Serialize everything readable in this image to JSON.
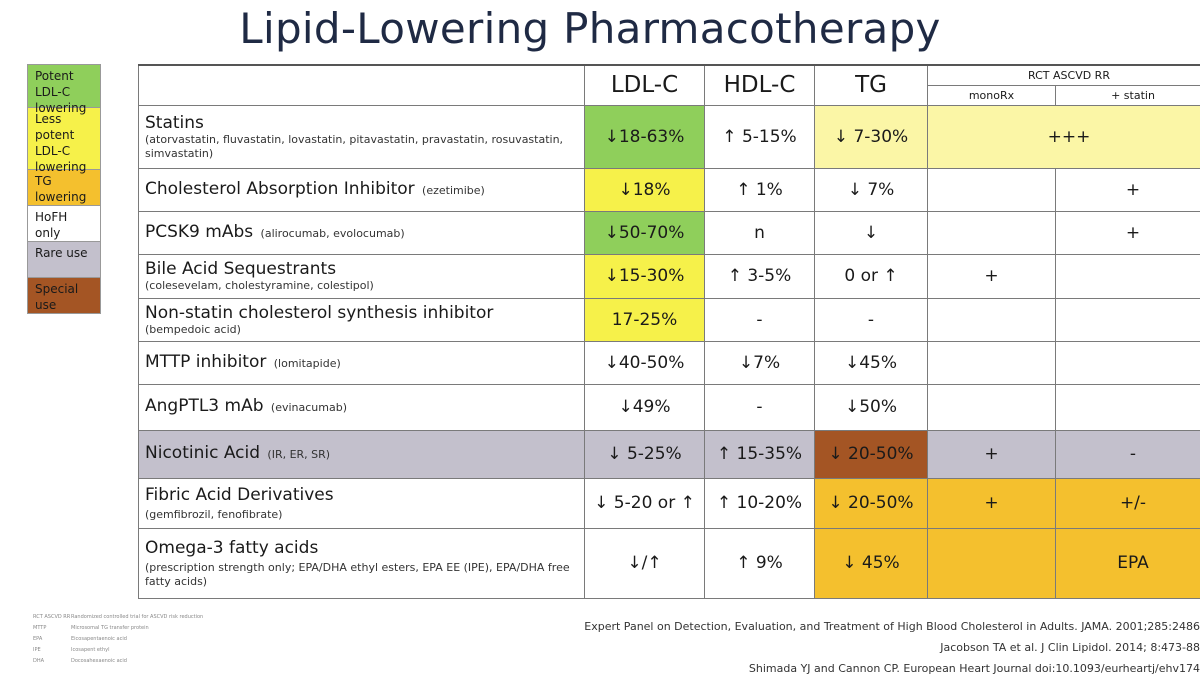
{
  "title": "Lipid-Lowering Pharmacotherapy",
  "legend": [
    {
      "label": "Potent LDL-C lowering",
      "color": "#8fcf5b"
    },
    {
      "label": "Less potent LDL-C lowering",
      "color": "#f6f14a"
    },
    {
      "label": "TG lowering",
      "color": "#f4c02e"
    },
    {
      "label": "HoFH only",
      "color": "#ffffff"
    },
    {
      "label": "Rare use",
      "color": "#c3c0cc"
    },
    {
      "label": "Special use",
      "color": "#a45524"
    }
  ],
  "columns": {
    "ldl": "LDL-C",
    "hdl": "HDL-C",
    "tg": "TG",
    "rct": "RCT ASCVD RR",
    "mono": "monoRx",
    "statin": "+ statin"
  },
  "rows": [
    {
      "name": "Statins",
      "detail_inline": "",
      "detail": "(atorvastatin, fluvastatin, lovastatin, pitavastatin, pravastatin, rosuvastatin, simvastatin)",
      "ldl": "↓18-63%",
      "hdl": "↑ 5-15%",
      "tg": "↓ 7-30%",
      "rct": "+++"
    },
    {
      "name": "Cholesterol Absorption Inhibitor",
      "detail_inline": "(ezetimibe)",
      "detail": "",
      "ldl": "↓18%",
      "hdl": "↑ 1%",
      "tg": "↓ 7%",
      "mono": "",
      "statin": "+"
    },
    {
      "name": "PCSK9 mAbs",
      "detail_inline": "(alirocumab, evolocumab)",
      "detail": "",
      "ldl": "↓50-70%",
      "hdl": "n",
      "tg": "↓",
      "mono": "",
      "statin": "+"
    },
    {
      "name": "Bile Acid Sequestrants",
      "detail_inline": "",
      "detail": "(colesevelam, cholestyramine, colestipol)",
      "ldl": "↓15-30%",
      "hdl": "↑ 3-5%",
      "tg": "0 or ↑",
      "mono": "+",
      "statin": ""
    },
    {
      "name": "Non-statin cholesterol synthesis inhibitor",
      "detail_inline": "",
      "detail": "(bempedoic acid)",
      "ldl": "17-25%",
      "hdl": "-",
      "tg": "-",
      "mono": "",
      "statin": ""
    },
    {
      "name": "MTTP inhibitor",
      "detail_inline": "(lomitapide)",
      "detail": "",
      "ldl": "↓40-50%",
      "hdl": "↓7%",
      "tg": "↓45%",
      "mono": "",
      "statin": ""
    },
    {
      "name": "AngPTL3 mAb",
      "detail_inline": "(evinacumab)",
      "detail": "",
      "ldl": "↓49%",
      "hdl": "-",
      "tg": "↓50%",
      "mono": "",
      "statin": ""
    },
    {
      "name": "Nicotinic Acid",
      "detail_inline": "(IR, ER, SR)",
      "detail": "",
      "ldl": "↓ 5-25%",
      "hdl": "↑ 15-35%",
      "tg": "↓ 20-50%",
      "mono": "+",
      "statin": "-"
    },
    {
      "name": "Fibric Acid Derivatives",
      "detail_inline": "",
      "detail": "(gemfibrozil, fenofibrate)",
      "ldl": "↓ 5-20 or ↑",
      "hdl": "↑ 10-20%",
      "tg": "↓ 20-50%",
      "mono": "+",
      "statin": "+/-"
    },
    {
      "name": "Omega-3 fatty acids",
      "detail_inline": "",
      "detail": "(prescription strength only; EPA/DHA ethyl esters, EPA EE (IPE), EPA/DHA free fatty acids)",
      "ldl": "↓/↑",
      "hdl": "↑ 9%",
      "tg": "↓ 45%",
      "mono": "",
      "statin": "EPA"
    }
  ],
  "abbreviations": [
    {
      "key": "RCT ASCVD RR",
      "def": "Randomized controlled trial for ASCVD risk reduction"
    },
    {
      "key": "MTTP",
      "def": "Microsomal TG transfer protein"
    },
    {
      "key": "EPA",
      "def": "Eicosapentaenoic acid"
    },
    {
      "key": "IPE",
      "def": "Icosapent ethyl"
    },
    {
      "key": "DHA",
      "def": "Docosahexaenoic acid"
    }
  ],
  "references": [
    "Expert Panel on Detection, Evaluation, and Treatment of High Blood Cholesterol in Adults. JAMA. 2001;285:2486",
    "Jacobson TA et al. J Clin Lipidol. 2014; 8:473-88",
    "Shimada YJ and Cannon CP. European Heart Journal doi:10.1093/eurheartj/ehv174"
  ]
}
